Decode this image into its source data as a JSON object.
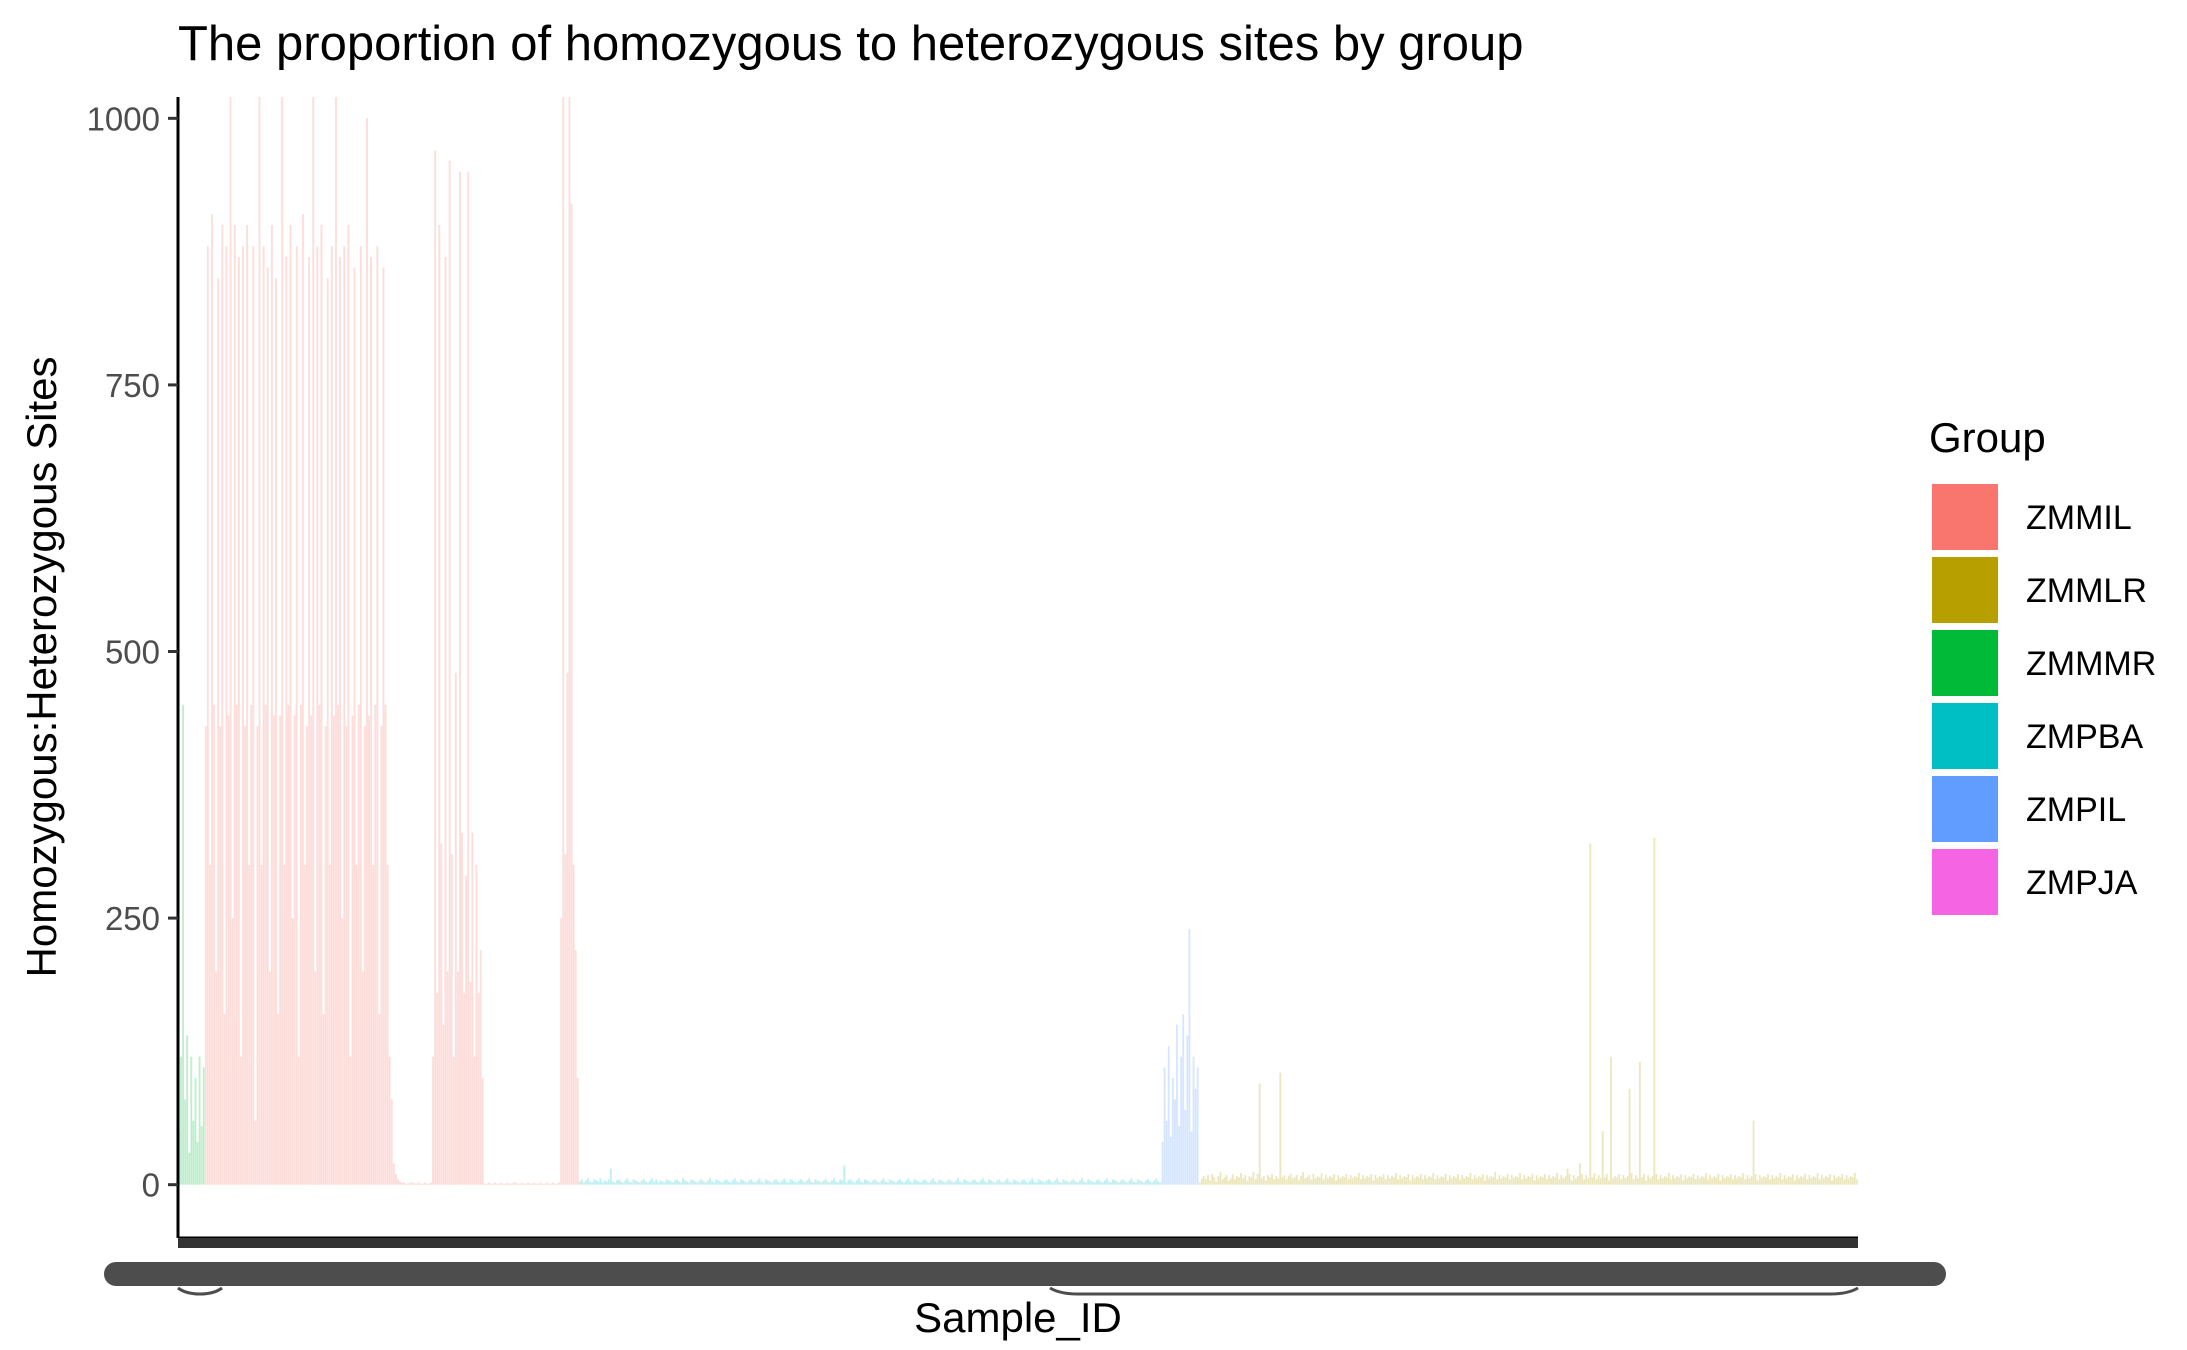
{
  "chart_data": {
    "type": "bar",
    "title": "The proportion of homozygous to heterozygous sites by group",
    "xlabel": "Sample_ID",
    "ylabel": "Homozygous:Heterozygous Sites",
    "ylim": [
      -50,
      1020
    ],
    "yticks": [
      0,
      250,
      500,
      750,
      1000
    ],
    "grid": false,
    "legend_title": "Group",
    "legend_position": "right",
    "x_tick_labels_note": "x tick labels overplotted and illegible",
    "series": [
      {
        "name": "ZMMIL",
        "color": "#F8766D",
        "bar_alpha": 0.25,
        "values": [
          430,
          880,
          300,
          910,
          450,
          200,
          850,
          430,
          900,
          160,
          880,
          440,
          1020,
          250,
          900,
          450,
          870,
          120,
          880,
          430,
          900,
          300,
          450,
          880,
          60,
          430,
          1020,
          300,
          880,
          450,
          860,
          200,
          900,
          440,
          850,
          160,
          440,
          1020,
          300,
          870,
          450,
          900,
          250,
          440,
          880,
          120,
          450,
          910,
          300,
          430,
          870,
          440,
          1020,
          200,
          880,
          450,
          900,
          160,
          430,
          850,
          300,
          880,
          440,
          1020,
          450,
          870,
          250,
          880,
          430,
          900,
          120,
          440,
          860,
          300,
          450,
          880,
          200,
          430,
          1000,
          440,
          870,
          300,
          450,
          880,
          160,
          430,
          860,
          450,
          300,
          120,
          80,
          20,
          10,
          5,
          3,
          2,
          2,
          1,
          1,
          2,
          2,
          1,
          1,
          2,
          1,
          1,
          2,
          1,
          1,
          2,
          120,
          970,
          180,
          900,
          320,
          150,
          870,
          200,
          960,
          310,
          120,
          480,
          200,
          950,
          330,
          180,
          290,
          950,
          190,
          330,
          120,
          300,
          180,
          220,
          100,
          1,
          1,
          2,
          1,
          1,
          2,
          1,
          1,
          2,
          1,
          1,
          2,
          1,
          1,
          2,
          2,
          1,
          1,
          2,
          1,
          1,
          2,
          1,
          1,
          2,
          1,
          1,
          2,
          1,
          1,
          2,
          1,
          1,
          2,
          1,
          1,
          2,
          250,
          1020,
          310,
          480,
          1020,
          920,
          300,
          220,
          100
        ]
      },
      {
        "name": "ZMMLR",
        "color": "#B79F00",
        "bar_alpha": 0.25,
        "values": [
          2,
          6,
          8,
          5,
          9,
          4,
          10,
          7,
          3,
          8,
          12,
          5,
          7,
          9,
          4,
          6,
          10,
          5,
          8,
          7,
          11,
          6,
          9,
          4,
          8,
          7,
          12,
          5,
          10,
          95,
          6,
          8,
          4,
          9,
          7,
          10,
          5,
          8,
          6,
          105,
          7,
          9,
          5,
          8,
          10,
          6,
          7,
          9,
          4,
          8,
          12,
          6,
          7,
          9,
          5,
          10,
          6,
          8,
          7,
          11,
          5,
          9,
          6,
          8,
          7,
          10,
          4,
          9,
          6,
          8,
          7,
          10,
          5,
          9,
          6,
          8,
          7,
          11,
          5,
          9,
          6,
          8,
          7,
          10,
          4,
          9,
          6,
          8,
          7,
          10,
          5,
          9,
          6,
          8,
          7,
          11,
          5,
          9,
          6,
          8,
          7,
          10,
          4,
          9,
          6,
          8,
          7,
          10,
          5,
          9,
          6,
          8,
          7,
          11,
          5,
          9,
          6,
          8,
          7,
          10,
          4,
          9,
          6,
          8,
          7,
          10,
          5,
          9,
          6,
          8,
          7,
          11,
          5,
          9,
          6,
          8,
          7,
          10,
          4,
          9,
          6,
          8,
          7,
          12,
          5,
          9,
          6,
          8,
          7,
          10,
          5,
          9,
          6,
          8,
          7,
          11,
          5,
          9,
          6,
          8,
          7,
          10,
          4,
          9,
          6,
          8,
          7,
          10,
          5,
          9,
          6,
          8,
          7,
          11,
          5,
          9,
          6,
          8,
          15,
          10,
          4,
          9,
          6,
          8,
          20,
          10,
          5,
          9,
          6,
          320,
          7,
          11,
          5,
          9,
          6,
          50,
          7,
          10,
          4,
          120,
          6,
          8,
          7,
          10,
          5,
          9,
          6,
          8,
          90,
          11,
          5,
          9,
          6,
          115,
          7,
          10,
          4,
          9,
          6,
          8,
          325,
          10,
          5,
          9,
          6,
          8,
          7,
          11,
          5,
          9,
          6,
          8,
          7,
          10,
          4,
          9,
          6,
          8,
          7,
          10,
          5,
          9,
          6,
          8,
          7,
          11,
          5,
          9,
          6,
          8,
          7,
          10,
          4,
          9,
          6,
          8,
          7,
          10,
          5,
          9,
          6,
          8,
          7,
          11,
          5,
          9,
          6,
          8,
          60,
          10,
          4,
          9,
          6,
          8,
          7,
          10,
          5,
          9,
          6,
          8,
          7,
          11,
          5,
          9,
          6,
          8,
          7,
          10,
          4,
          9,
          6,
          8,
          7,
          10,
          5,
          9,
          6,
          8,
          7,
          11,
          5,
          9,
          6,
          8,
          7,
          10,
          4,
          9,
          6,
          8,
          7,
          10,
          5,
          9,
          6,
          8,
          7,
          11,
          5
        ]
      },
      {
        "name": "ZMMMR",
        "color": "#00BA38",
        "bar_alpha": 0.25,
        "values": [
          50,
          120,
          450,
          80,
          140,
          30,
          120,
          60,
          100,
          40,
          120,
          55,
          110
        ]
      },
      {
        "name": "ZMPBA",
        "color": "#00BFC4",
        "bar_alpha": 0.25,
        "values": [
          3,
          5,
          2,
          4,
          6,
          3,
          2,
          5,
          4,
          3,
          6,
          2,
          4,
          3,
          5,
          15,
          3,
          2,
          4,
          5,
          3,
          2,
          4,
          6,
          3,
          2,
          5,
          4,
          3,
          2,
          4,
          5,
          3,
          2,
          4,
          6,
          3,
          5,
          2,
          4,
          3,
          2,
          5,
          4,
          3,
          2,
          4,
          5,
          3,
          2,
          6,
          4,
          3,
          2,
          5,
          4,
          3,
          2,
          4,
          5,
          3,
          2,
          4,
          6,
          3,
          2,
          5,
          4,
          3,
          2,
          4,
          5,
          3,
          2,
          4,
          6,
          3,
          2,
          5,
          4,
          3,
          2,
          4,
          5,
          3,
          2,
          4,
          6,
          3,
          2,
          5,
          4,
          3,
          2,
          4,
          5,
          3,
          2,
          4,
          6,
          3,
          2,
          5,
          4,
          3,
          2,
          4,
          5,
          3,
          2,
          4,
          6,
          3,
          2,
          5,
          4,
          3,
          2,
          4,
          5,
          3,
          2,
          4,
          6,
          3,
          2,
          5,
          4,
          18,
          2,
          4,
          5,
          3,
          2,
          4,
          6,
          3,
          2,
          5,
          4,
          3,
          2,
          4,
          5,
          3,
          2,
          4,
          6,
          3,
          2,
          5,
          4,
          3,
          2,
          4,
          5,
          3,
          2,
          4,
          6,
          3,
          2,
          5,
          4,
          3,
          2,
          4,
          5,
          3,
          2,
          4,
          6,
          3,
          2,
          5,
          4,
          3,
          2,
          4,
          5,
          3,
          2,
          4,
          6,
          3,
          2,
          5,
          4,
          3,
          2,
          4,
          5,
          3,
          2,
          4,
          6,
          3,
          2,
          5,
          4,
          3,
          2,
          4,
          5,
          3,
          2,
          4,
          6,
          3,
          2,
          5,
          4,
          3,
          2,
          4,
          5,
          3,
          2,
          4,
          6,
          3,
          2,
          5,
          4,
          3,
          2,
          4,
          5,
          3,
          2,
          4,
          6,
          3,
          2,
          5,
          4,
          3,
          2,
          4,
          5,
          3,
          2,
          4,
          6,
          3,
          2,
          5,
          4,
          3,
          2,
          4,
          5,
          3,
          2,
          4,
          6,
          3,
          2,
          5,
          4,
          3,
          2,
          4,
          5,
          3,
          2,
          4,
          6,
          3,
          2,
          5,
          4,
          3,
          2,
          4,
          5,
          3,
          2,
          4,
          6,
          3,
          2
        ]
      },
      {
        "name": "ZMPIL",
        "color": "#619CFF",
        "bar_alpha": 0.25,
        "values": [
          40,
          110,
          60,
          130,
          45,
          100,
          80,
          150,
          55,
          120,
          160,
          70,
          140,
          240,
          50,
          120,
          90,
          110
        ]
      },
      {
        "name": "ZMPJA",
        "color": "#F564E3",
        "bar_alpha": 0.25,
        "values": []
      }
    ]
  }
}
